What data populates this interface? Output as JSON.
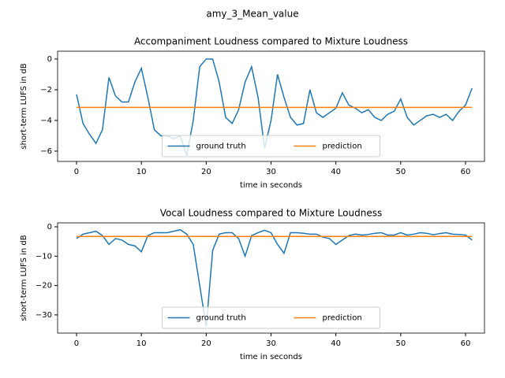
{
  "title": "amy_3_Mean_value",
  "chart_data": [
    {
      "type": "line",
      "title": "Accompaniment Loudness compared to Mixture Loudness",
      "x_label": "time in seconds",
      "y_label": "short-term LUFS in dB",
      "x": [
        0,
        1,
        2,
        3,
        4,
        5,
        6,
        7,
        8,
        9,
        10,
        11,
        12,
        13,
        14,
        15,
        16,
        17,
        18,
        19,
        20,
        21,
        22,
        23,
        24,
        25,
        26,
        27,
        28,
        29,
        30,
        31,
        32,
        33,
        34,
        35,
        36,
        37,
        38,
        39,
        40,
        41,
        42,
        43,
        44,
        45,
        46,
        47,
        48,
        49,
        50,
        51,
        52,
        53,
        54,
        55,
        56,
        57,
        58,
        59,
        60,
        61
      ],
      "series": [
        {
          "name": "ground truth",
          "color": "#1f77b4",
          "values": [
            -2.3,
            -4.2,
            -4.9,
            -5.5,
            -4.6,
            -1.2,
            -2.4,
            -2.8,
            -2.8,
            -1.5,
            -0.6,
            -2.5,
            -4.6,
            -5.0,
            -5.0,
            -5.2,
            -5.0,
            -6.3,
            -4.0,
            -0.5,
            0,
            0,
            -1.5,
            -3.8,
            -4.2,
            -3.3,
            -1.5,
            -0.5,
            -2.5,
            -5.8,
            -4.0,
            -1.0,
            -2.5,
            -3.8,
            -4.3,
            -4.2,
            -2.0,
            -3.5,
            -3.8,
            -3.5,
            -3.2,
            -2.2,
            -3.0,
            -3.2,
            -3.5,
            -3.3,
            -3.8,
            -4.0,
            -3.6,
            -3.4,
            -2.6,
            -3.8,
            -4.3,
            -4.0,
            -3.7,
            -3.6,
            -3.8,
            -3.6,
            -4.0,
            -3.4,
            -3.0,
            -1.9
          ]
        },
        {
          "name": "prediction",
          "color": "#ff7f0e",
          "values": [
            -3.15,
            -3.15,
            -3.15,
            -3.15,
            -3.15,
            -3.15,
            -3.15,
            -3.15,
            -3.15,
            -3.15,
            -3.15,
            -3.15,
            -3.15,
            -3.15,
            -3.15,
            -3.15,
            -3.15,
            -3.15,
            -3.15,
            -3.15,
            -3.15,
            -3.15,
            -3.15,
            -3.15,
            -3.15,
            -3.15,
            -3.15,
            -3.15,
            -3.15,
            -3.15,
            -3.15,
            -3.15,
            -3.15,
            -3.15,
            -3.15,
            -3.15,
            -3.15,
            -3.15,
            -3.15,
            -3.15,
            -3.15,
            -3.15,
            -3.15,
            -3.15,
            -3.15,
            -3.15,
            -3.15,
            -3.15,
            -3.15,
            -3.15,
            -3.15,
            -3.15,
            -3.15,
            -3.15,
            -3.15,
            -3.15,
            -3.15,
            -3.15,
            -3.15,
            -3.15,
            -3.15,
            -3.15
          ]
        }
      ],
      "xlim": [
        -2.92,
        62.92
      ],
      "ylim": [
        -6.67,
        0.51
      ],
      "xticks": [
        0,
        10,
        20,
        30,
        40,
        50,
        60
      ],
      "yticks": [
        0,
        {
          "value": -2,
          "label": "−2"
        },
        {
          "value": -4,
          "label": "−4"
        },
        {
          "value": -6,
          "label": "−6"
        }
      ],
      "legend": "lower center"
    },
    {
      "type": "line",
      "title": "Vocal Loudness compared to Mixture Loudness",
      "x_label": "time in seconds",
      "y_label": "short-term LUFS in dB",
      "x": [
        0,
        1,
        2,
        3,
        4,
        5,
        6,
        7,
        8,
        9,
        10,
        11,
        12,
        13,
        14,
        15,
        16,
        17,
        18,
        19,
        20,
        21,
        22,
        23,
        24,
        25,
        26,
        27,
        28,
        29,
        30,
        31,
        32,
        33,
        34,
        35,
        36,
        37,
        38,
        39,
        40,
        41,
        42,
        43,
        44,
        45,
        46,
        47,
        48,
        49,
        50,
        51,
        52,
        53,
        54,
        55,
        56,
        57,
        58,
        59,
        60,
        61
      ],
      "series": [
        {
          "name": "ground truth",
          "color": "#1f77b4",
          "values": [
            -4,
            -2.5,
            -2,
            -1.5,
            -3,
            -6,
            -4,
            -4.5,
            -6,
            -6.5,
            -8.5,
            -3,
            -2,
            -2,
            -2,
            -1.5,
            -1,
            -2.5,
            -6,
            -20,
            -34,
            -8,
            -2.5,
            -2,
            -2,
            -4,
            -10,
            -3,
            -2,
            -1.2,
            -2,
            -6,
            -9,
            -2,
            -2,
            -2.2,
            -2.5,
            -2.5,
            -3.5,
            -4,
            -6,
            -4.5,
            -3,
            -2.5,
            -2.8,
            -2.6,
            -2.2,
            -2,
            -2.8,
            -2.8,
            -2,
            -2.8,
            -2.5,
            -2,
            -2.2,
            -2.7,
            -2.3,
            -2,
            -2.5,
            -2.6,
            -2.8,
            -4.5
          ]
        },
        {
          "name": "prediction",
          "color": "#ff7f0e",
          "values": [
            -3.3,
            -3.3,
            -3.3,
            -3.3,
            -3.3,
            -3.3,
            -3.3,
            -3.3,
            -3.3,
            -3.3,
            -3.3,
            -3.3,
            -3.3,
            -3.3,
            -3.3,
            -3.3,
            -3.3,
            -3.3,
            -3.3,
            -3.3,
            -3.3,
            -3.3,
            -3.3,
            -3.3,
            -3.3,
            -3.3,
            -3.3,
            -3.3,
            -3.3,
            -3.3,
            -3.3,
            -3.3,
            -3.3,
            -3.3,
            -3.3,
            -3.3,
            -3.3,
            -3.3,
            -3.3,
            -3.3,
            -3.3,
            -3.3,
            -3.3,
            -3.3,
            -3.3,
            -3.3,
            -3.3,
            -3.3,
            -3.3,
            -3.3,
            -3.3,
            -3.3,
            -3.3,
            -3.3,
            -3.3,
            -3.3,
            -3.3,
            -3.3,
            -3.3,
            -3.3,
            -3.3,
            -3.3
          ]
        }
      ],
      "xlim": [
        -2.92,
        62.92
      ],
      "ylim": [
        -36.2,
        1.34
      ],
      "xticks": [
        0,
        10,
        20,
        30,
        40,
        50,
        60
      ],
      "yticks": [
        0,
        {
          "value": -10,
          "label": "−10"
        },
        {
          "value": -20,
          "label": "−20"
        },
        {
          "value": -30,
          "label": "−30"
        }
      ],
      "legend": "lower center"
    }
  ]
}
